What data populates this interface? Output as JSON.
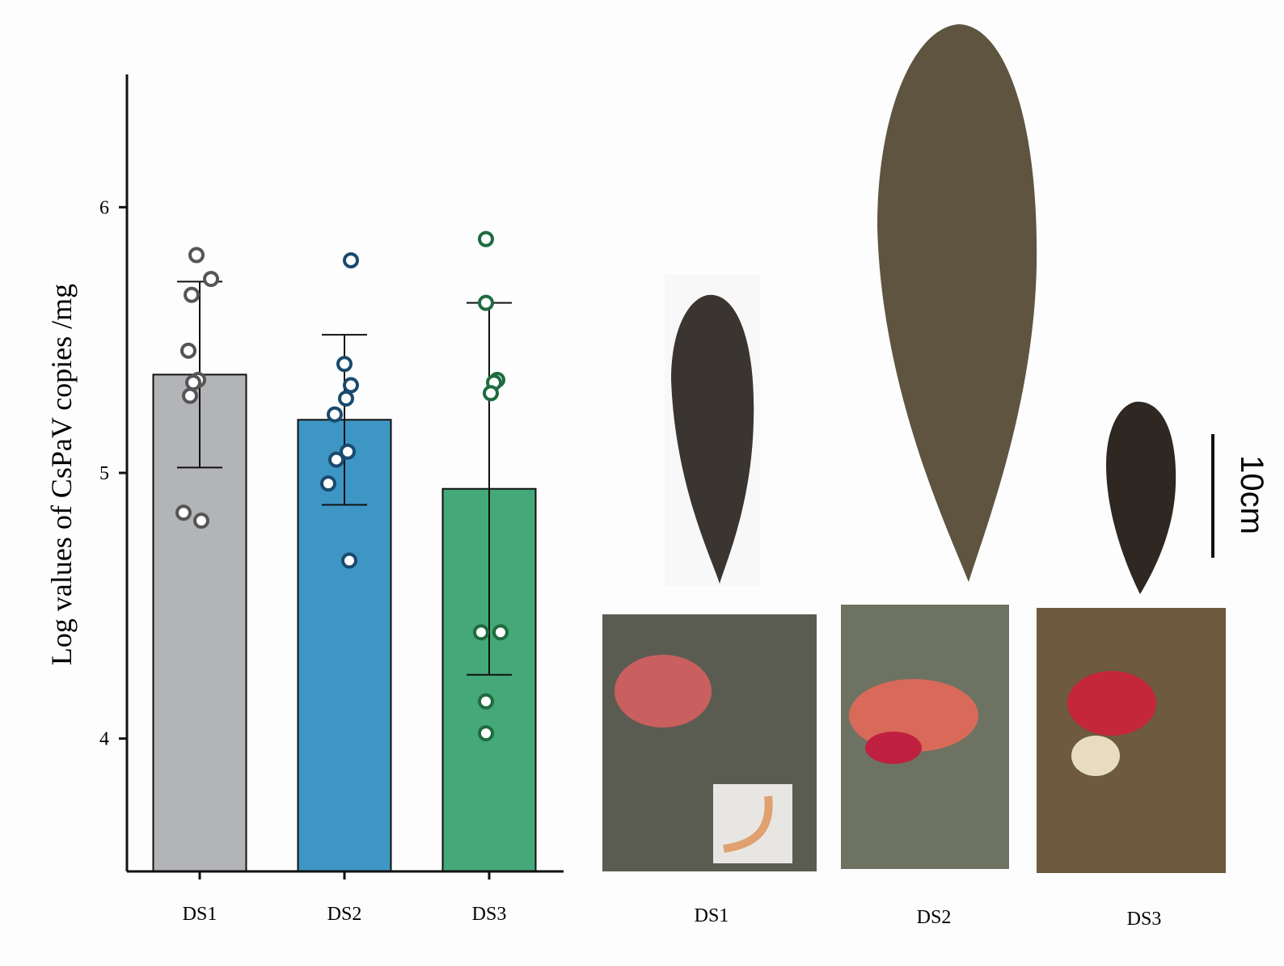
{
  "chart_data": {
    "type": "bar",
    "ylabel": "Log values of CsPaV copies /mg",
    "categories": [
      "DS1",
      "DS2",
      "DS3"
    ],
    "colors": [
      "#b3b4b7",
      "#3e96c4",
      "#44a878"
    ],
    "point_colors": [
      "#555555",
      "#1a4a6e",
      "#1e6b3e"
    ],
    "series": [
      {
        "values": [
          5.37,
          5.2,
          4.94
        ],
        "errors": [
          0.35,
          0.32,
          0.7
        ]
      }
    ],
    "points": [
      [
        5.82,
        5.73,
        5.67,
        5.46,
        5.35,
        5.34,
        5.29,
        4.85,
        4.82
      ],
      [
        5.8,
        5.41,
        5.33,
        5.28,
        5.22,
        5.08,
        5.05,
        4.96,
        4.67
      ],
      [
        5.88,
        5.64,
        5.35,
        5.34,
        5.3,
        4.4,
        4.4,
        4.14,
        4.02
      ]
    ],
    "ylim": [
      3.5,
      6.5
    ],
    "yticks": [
      4,
      5,
      6
    ]
  },
  "figure": {
    "photo_labels": [
      "DS1",
      "DS2",
      "DS3"
    ],
    "scale_bar": "10cm"
  }
}
